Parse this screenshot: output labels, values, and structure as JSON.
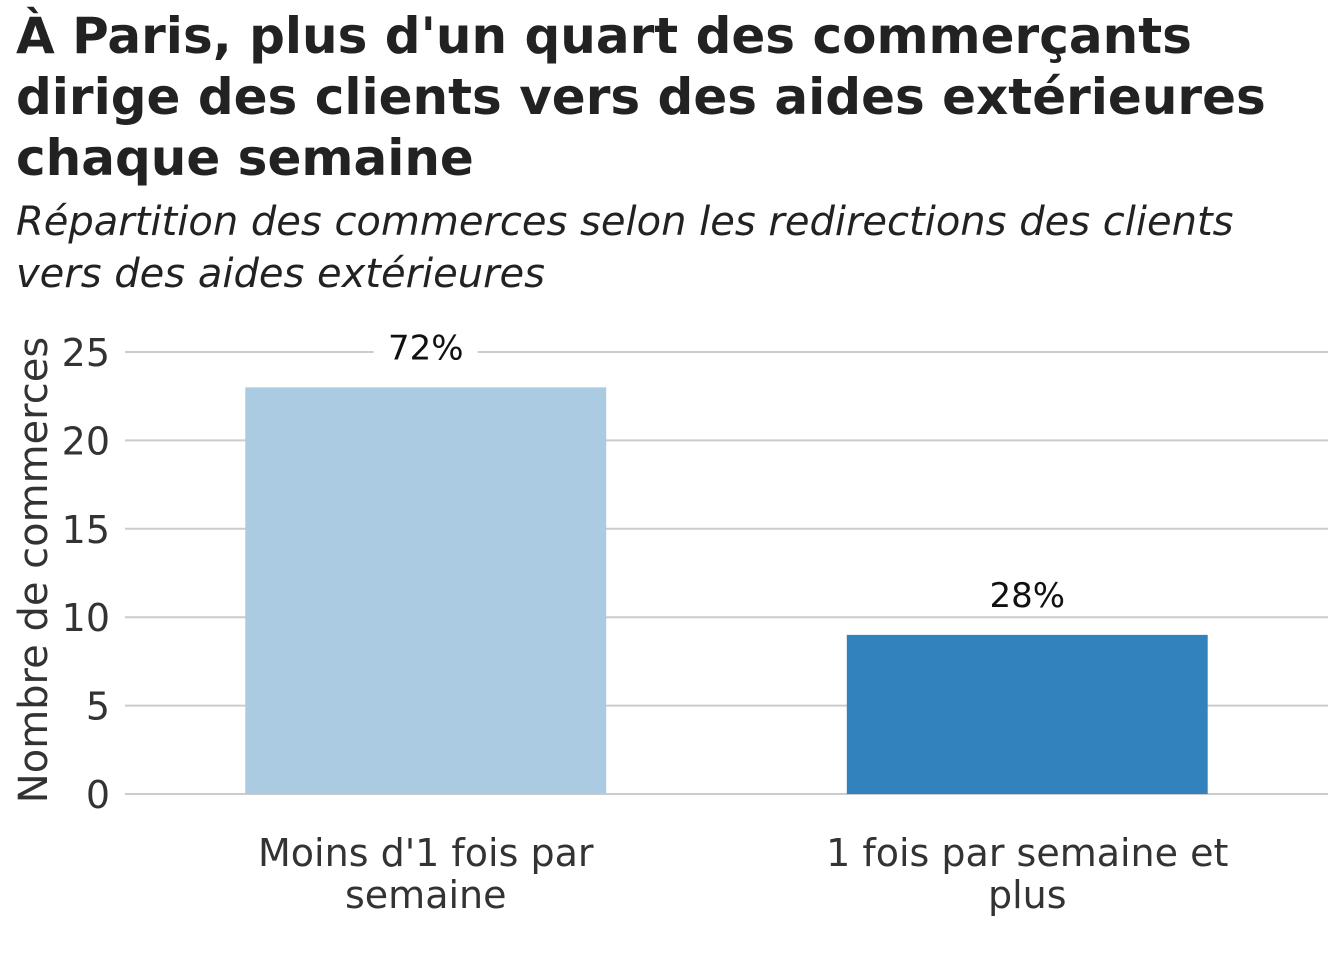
{
  "title": "À Paris, plus d'un quart des commerçants dirige des clients vers des aides extérieures chaque semaine",
  "subtitle": "Répartition des commerces selon les redirections des clients vers des aides extérieures",
  "chart_data": {
    "type": "bar",
    "categories": [
      "Moins d'1 fois par semaine",
      "1 fois par semaine et plus"
    ],
    "category_lines": [
      [
        "Moins d'1 fois par",
        "semaine"
      ],
      [
        "1 fois par semaine et",
        "plus"
      ]
    ],
    "values": [
      23,
      9
    ],
    "labels": [
      "72%",
      "28%"
    ],
    "colors": [
      "#abcbe3",
      "#3182bd"
    ],
    "ylabel": "Nombre de commerces",
    "xlabel": "",
    "ylim": [
      0,
      25
    ],
    "yticks": [
      0,
      5,
      10,
      15,
      20,
      25
    ],
    "grid": true
  }
}
